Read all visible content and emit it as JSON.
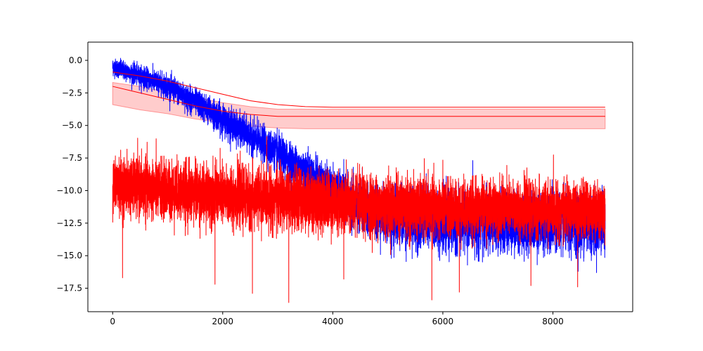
{
  "chart_data": {
    "type": "line",
    "title": "",
    "xlabel": "",
    "ylabel": "",
    "xlim": [
      -450,
      9450
    ],
    "ylim": [
      -19.3,
      1.4
    ],
    "grid": false,
    "legend": "none",
    "x_ticks": [
      0,
      2000,
      4000,
      6000,
      8000
    ],
    "x_tick_labels": [
      "0",
      "2000",
      "4000",
      "6000",
      "8000"
    ],
    "y_ticks": [
      0.0,
      -2.5,
      -5.0,
      -7.5,
      -10.0,
      -12.5,
      -15.0,
      -17.5
    ],
    "y_tick_labels": [
      "0.0",
      "−2.5",
      "−5.0",
      "−7.5",
      "−10.0",
      "−12.5",
      "−15.0",
      "−17.5"
    ],
    "series": [
      {
        "color": "#0000ff",
        "style": "noisy-line",
        "n_points": 9000,
        "trend_x": [
          0,
          500,
          1000,
          1500,
          2000,
          2500,
          3000,
          3500,
          4000,
          4500,
          5000,
          6000,
          7000,
          8000,
          8950
        ],
        "trend_y": [
          -0.5,
          -1.2,
          -2.0,
          -3.2,
          -4.5,
          -5.8,
          -7.1,
          -8.5,
          -9.9,
          -11.4,
          -12.0,
          -12.4,
          -12.4,
          -12.5,
          -12.6
        ],
        "noise_amplitude": [
          0.6,
          0.7,
          0.8,
          0.9,
          1.0,
          1.1,
          1.2,
          1.3,
          1.4,
          1.6,
          1.9,
          2.0,
          2.0,
          2.0,
          2.0
        ]
      },
      {
        "color": "#ff0000",
        "style": "noisy-line",
        "n_points": 9000,
        "trend_x": [
          0,
          1000,
          2000,
          3000,
          4000,
          5000,
          6000,
          7000,
          8000,
          8950
        ],
        "trend_y": [
          -9.6,
          -10.0,
          -10.4,
          -10.6,
          -10.9,
          -11.2,
          -11.4,
          -11.3,
          -11.5,
          -11.5
        ],
        "noise_amplitude": [
          1.9,
          2.0,
          2.0,
          2.0,
          2.0,
          2.0,
          1.9,
          1.8,
          1.8,
          1.8
        ],
        "spikes": [
          {
            "x": 180,
            "y": -16.7
          },
          {
            "x": 1860,
            "y": -17.2
          },
          {
            "x": 2540,
            "y": -17.9
          },
          {
            "x": 3200,
            "y": -18.6
          },
          {
            "x": 4200,
            "y": -16.8
          },
          {
            "x": 5800,
            "y": -18.4
          },
          {
            "x": 6300,
            "y": -17.8
          },
          {
            "x": 7600,
            "y": -17.3
          },
          {
            "x": 8450,
            "y": -17.4
          }
        ]
      },
      {
        "color": "#ff0000",
        "style": "line",
        "x": [
          0,
          500,
          1000,
          1500,
          2000,
          2500,
          3000,
          3500,
          4000,
          5000,
          6000,
          7000,
          8000,
          8950
        ],
        "y": [
          -0.9,
          -1.2,
          -1.6,
          -2.1,
          -2.6,
          -3.1,
          -3.4,
          -3.55,
          -3.6,
          -3.6,
          -3.6,
          -3.6,
          -3.6,
          -3.6
        ]
      },
      {
        "color": "#ff0000",
        "style": "line-with-band",
        "band_alpha": 0.2,
        "x": [
          0,
          500,
          1000,
          1500,
          2000,
          2500,
          3000,
          3500,
          4000,
          5000,
          6000,
          7000,
          8000,
          8950
        ],
        "y": [
          -2.0,
          -2.5,
          -3.0,
          -3.5,
          -3.9,
          -4.15,
          -4.3,
          -4.3,
          -4.3,
          -4.3,
          -4.3,
          -4.3,
          -4.3,
          -4.3
        ],
        "y_lower": [
          -3.4,
          -3.8,
          -4.1,
          -4.5,
          -4.8,
          -5.05,
          -5.2,
          -5.25,
          -5.25,
          -5.25,
          -5.25,
          -5.25,
          -5.25,
          -5.25
        ],
        "y_upper": [
          -1.7,
          -2.0,
          -2.45,
          -2.85,
          -3.25,
          -3.55,
          -3.75,
          -3.75,
          -3.75,
          -3.75,
          -3.75,
          -3.75,
          -3.75,
          -3.75
        ]
      }
    ]
  }
}
